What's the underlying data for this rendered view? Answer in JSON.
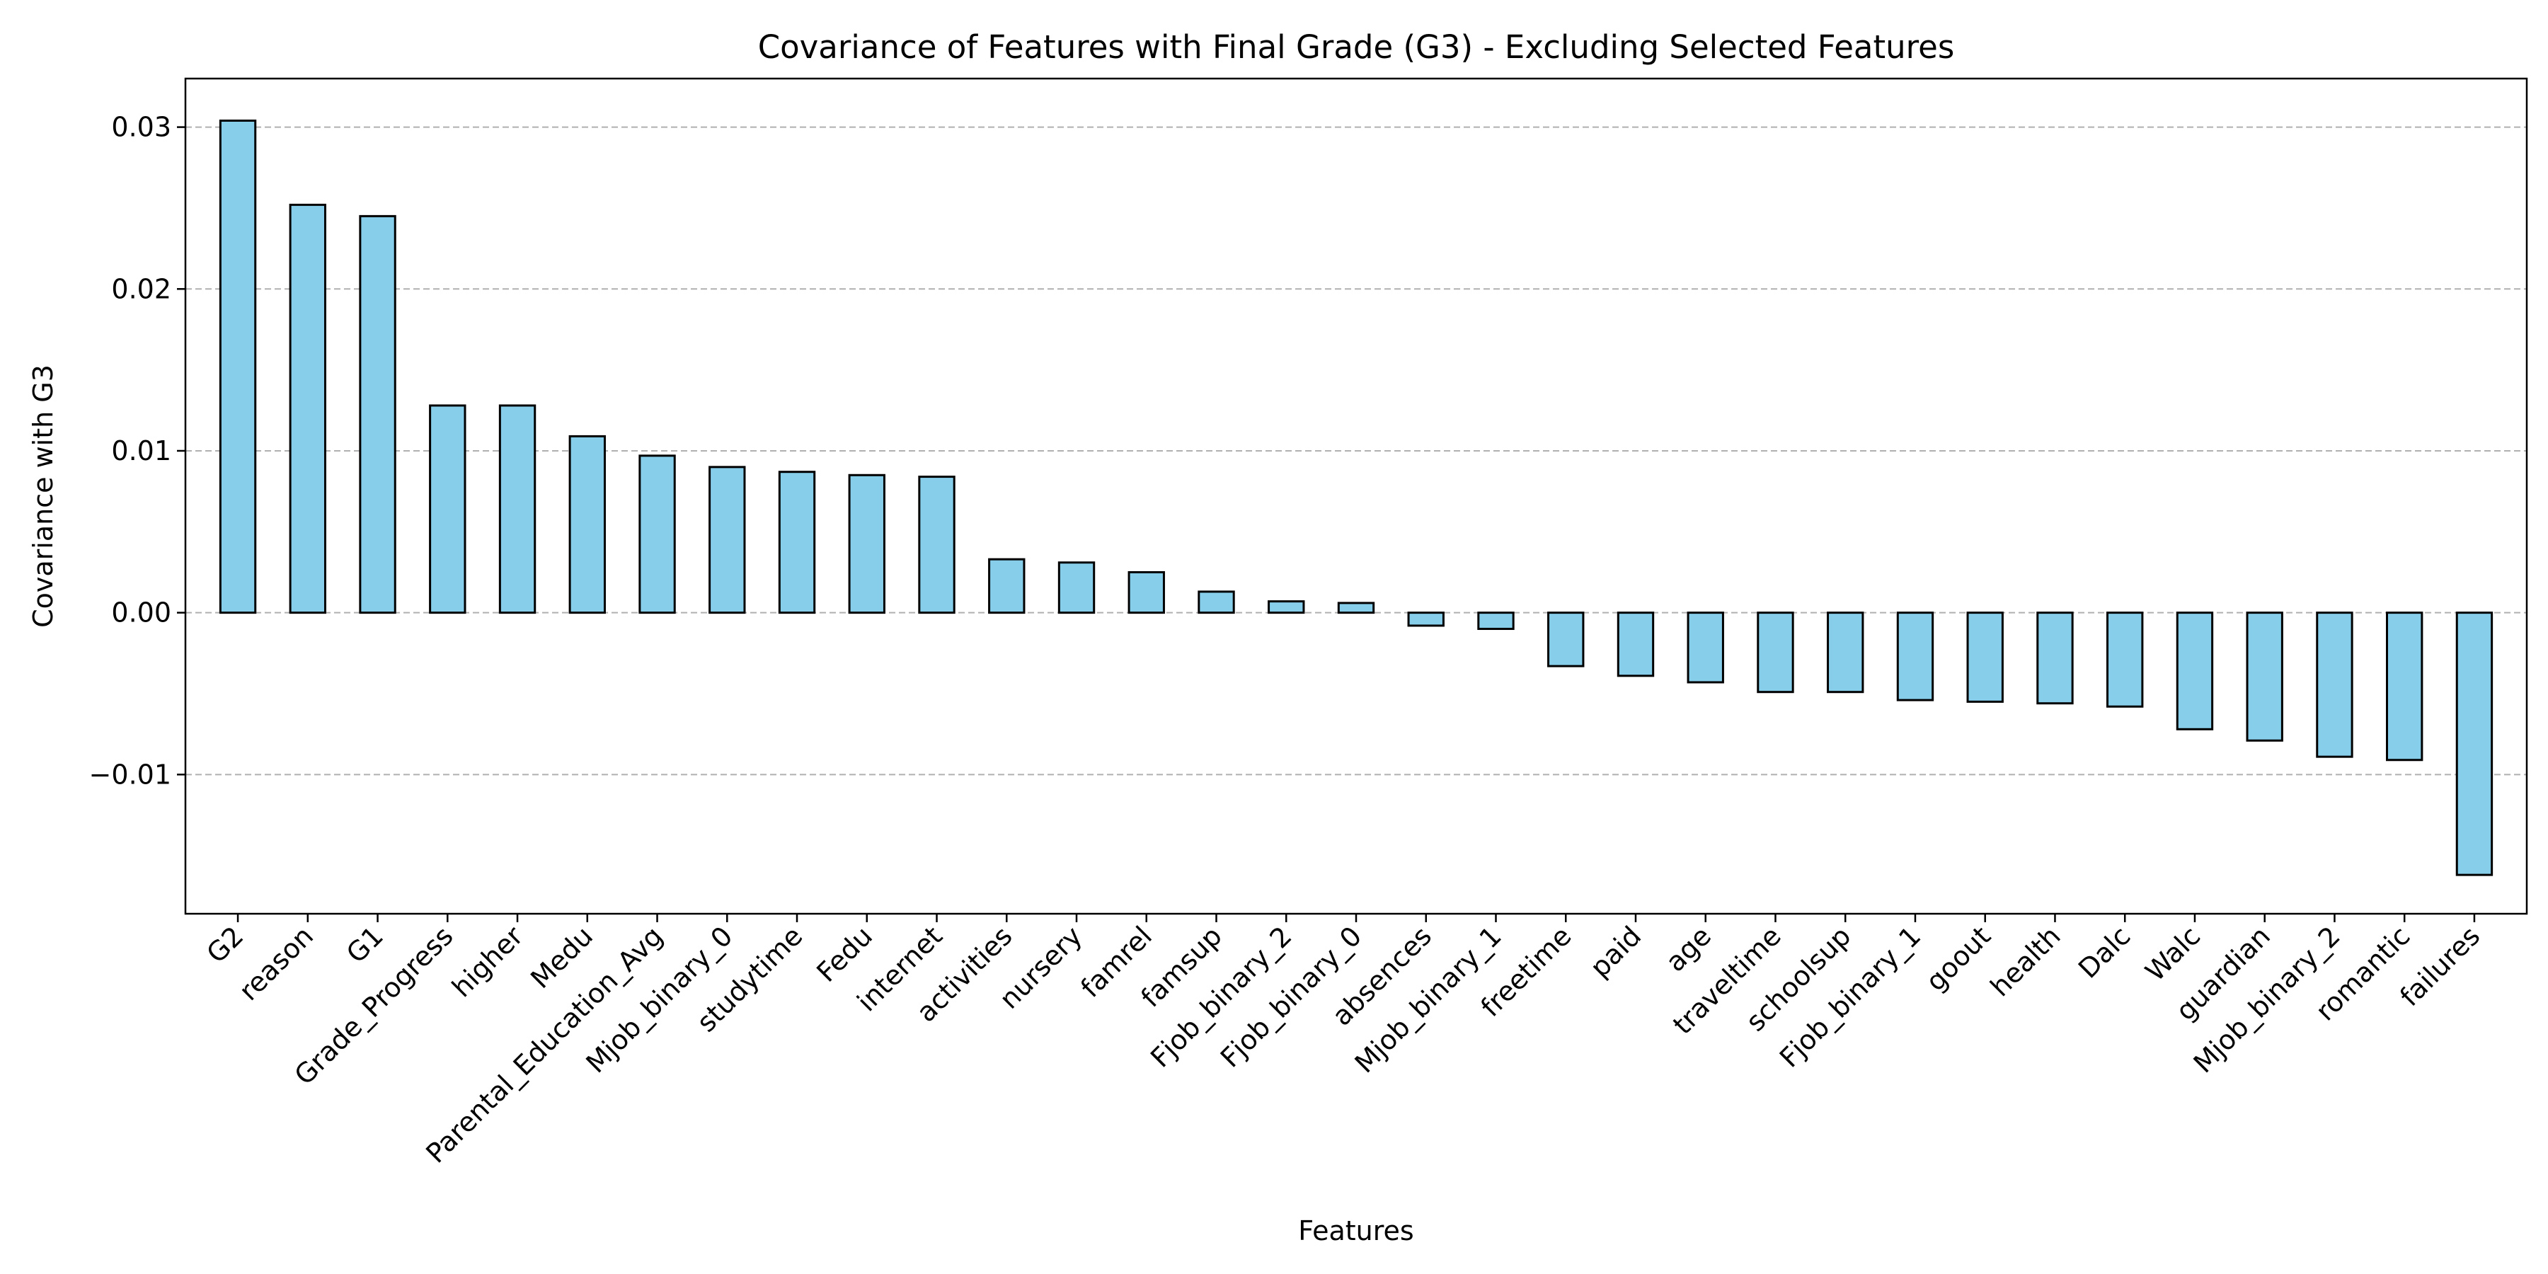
{
  "chart_data": {
    "type": "bar",
    "title": "Covariance of Features with Final Grade (G3) - Excluding Selected Features",
    "xlabel": "Features",
    "ylabel": "Covariance with G3",
    "ylim": [
      -0.0186,
      0.033
    ],
    "yticks": [
      -0.01,
      0.0,
      0.01,
      0.02,
      0.03
    ],
    "ytick_labels": [
      "−0.01",
      "0.00",
      "0.01",
      "0.02",
      "0.03"
    ],
    "grid": "y-dashed",
    "bar_color": "#87CEEB",
    "edge_color": "#000000",
    "categories": [
      "G2",
      "reason",
      "G1",
      "Grade_Progress",
      "higher",
      "Medu",
      "Parental_Education_Avg",
      "Mjob_binary_0",
      "studytime",
      "Fedu",
      "internet",
      "activities",
      "nursery",
      "famrel",
      "famsup",
      "Fjob_binary_2",
      "Fjob_binary_0",
      "absences",
      "Mjob_binary_1",
      "freetime",
      "paid",
      "age",
      "traveltime",
      "schoolsup",
      "Fjob_binary_1",
      "goout",
      "health",
      "Dalc",
      "Walc",
      "guardian",
      "Mjob_binary_2",
      "romantic",
      "failures"
    ],
    "values": [
      0.0304,
      0.0252,
      0.0245,
      0.0128,
      0.0128,
      0.0109,
      0.0097,
      0.009,
      0.0087,
      0.0085,
      0.0084,
      0.0033,
      0.0031,
      0.0025,
      0.0013,
      0.0007,
      0.0006,
      -0.0008,
      -0.001,
      -0.0033,
      -0.0039,
      -0.0043,
      -0.0049,
      -0.0049,
      -0.0054,
      -0.0055,
      -0.0056,
      -0.0058,
      -0.0072,
      -0.0079,
      -0.0089,
      -0.0091,
      -0.0162
    ]
  }
}
